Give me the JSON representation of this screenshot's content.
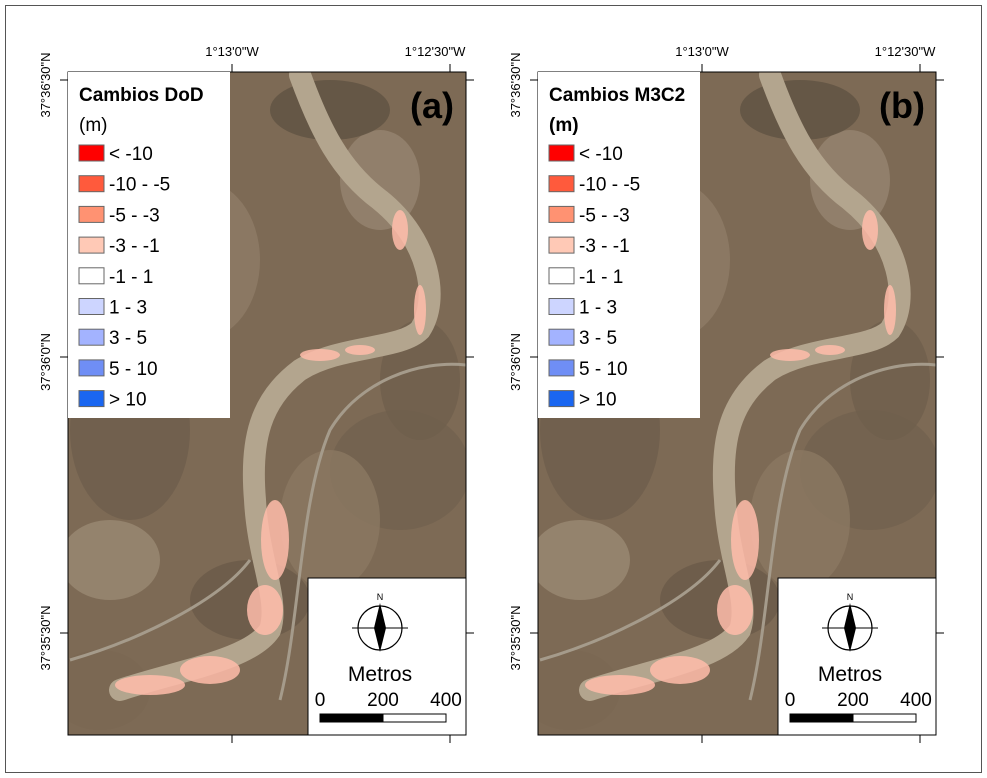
{
  "panels": [
    {
      "label": "(a)",
      "legend": {
        "title": "Cambios DoD",
        "unit": "(m)",
        "items": [
          {
            "label": "< -10",
            "color": "#ff0000"
          },
          {
            "label": "-10 - -5",
            "color": "#ff5a3c"
          },
          {
            "label": "-5 - -3",
            "color": "#ff9272"
          },
          {
            "label": "-3 - -1",
            "color": "#ffc9b6"
          },
          {
            "label": "-1 - 1",
            "color": "#ffffff"
          },
          {
            "label": "1 - 3",
            "color": "#cdd5ff"
          },
          {
            "label": "3 - 5",
            "color": "#a3b3ff"
          },
          {
            "label": "5 - 10",
            "color": "#6f8ef5"
          },
          {
            "label": "> 10",
            "color": "#1a66f0"
          }
        ]
      },
      "longitudes": [
        "1°13'0\"W",
        "1°12'30\"W"
      ],
      "latitudes": [
        "37°36'30\"N",
        "37°36'0\"N",
        "37°35'30\"N"
      ],
      "scale": {
        "north": "N",
        "unit": "Metros",
        "ticks": [
          "0",
          "200",
          "400"
        ]
      }
    },
    {
      "label": "(b)",
      "legend": {
        "title": "Cambios M3C2",
        "unit": "(m)",
        "items": [
          {
            "label": "< -10",
            "color": "#ff0000"
          },
          {
            "label": "-10 - -5",
            "color": "#ff5a3c"
          },
          {
            "label": "-5 - -3",
            "color": "#ff9272"
          },
          {
            "label": "-3 - -1",
            "color": "#ffc9b6"
          },
          {
            "label": "-1 - 1",
            "color": "#ffffff"
          },
          {
            "label": "1 - 3",
            "color": "#cdd5ff"
          },
          {
            "label": "3 - 5",
            "color": "#a3b3ff"
          },
          {
            "label": "5 - 10",
            "color": "#6f8ef5"
          },
          {
            "label": "> 10",
            "color": "#1a66f0"
          }
        ]
      },
      "longitudes": [
        "1°13'0\"W",
        "1°12'30\"W"
      ],
      "latitudes": [
        "37°36'30\"N",
        "37°36'0\"N",
        "37°35'30\"N"
      ],
      "scale": {
        "north": "N",
        "unit": "Metros",
        "ticks": [
          "0",
          "200",
          "400"
        ]
      }
    }
  ]
}
